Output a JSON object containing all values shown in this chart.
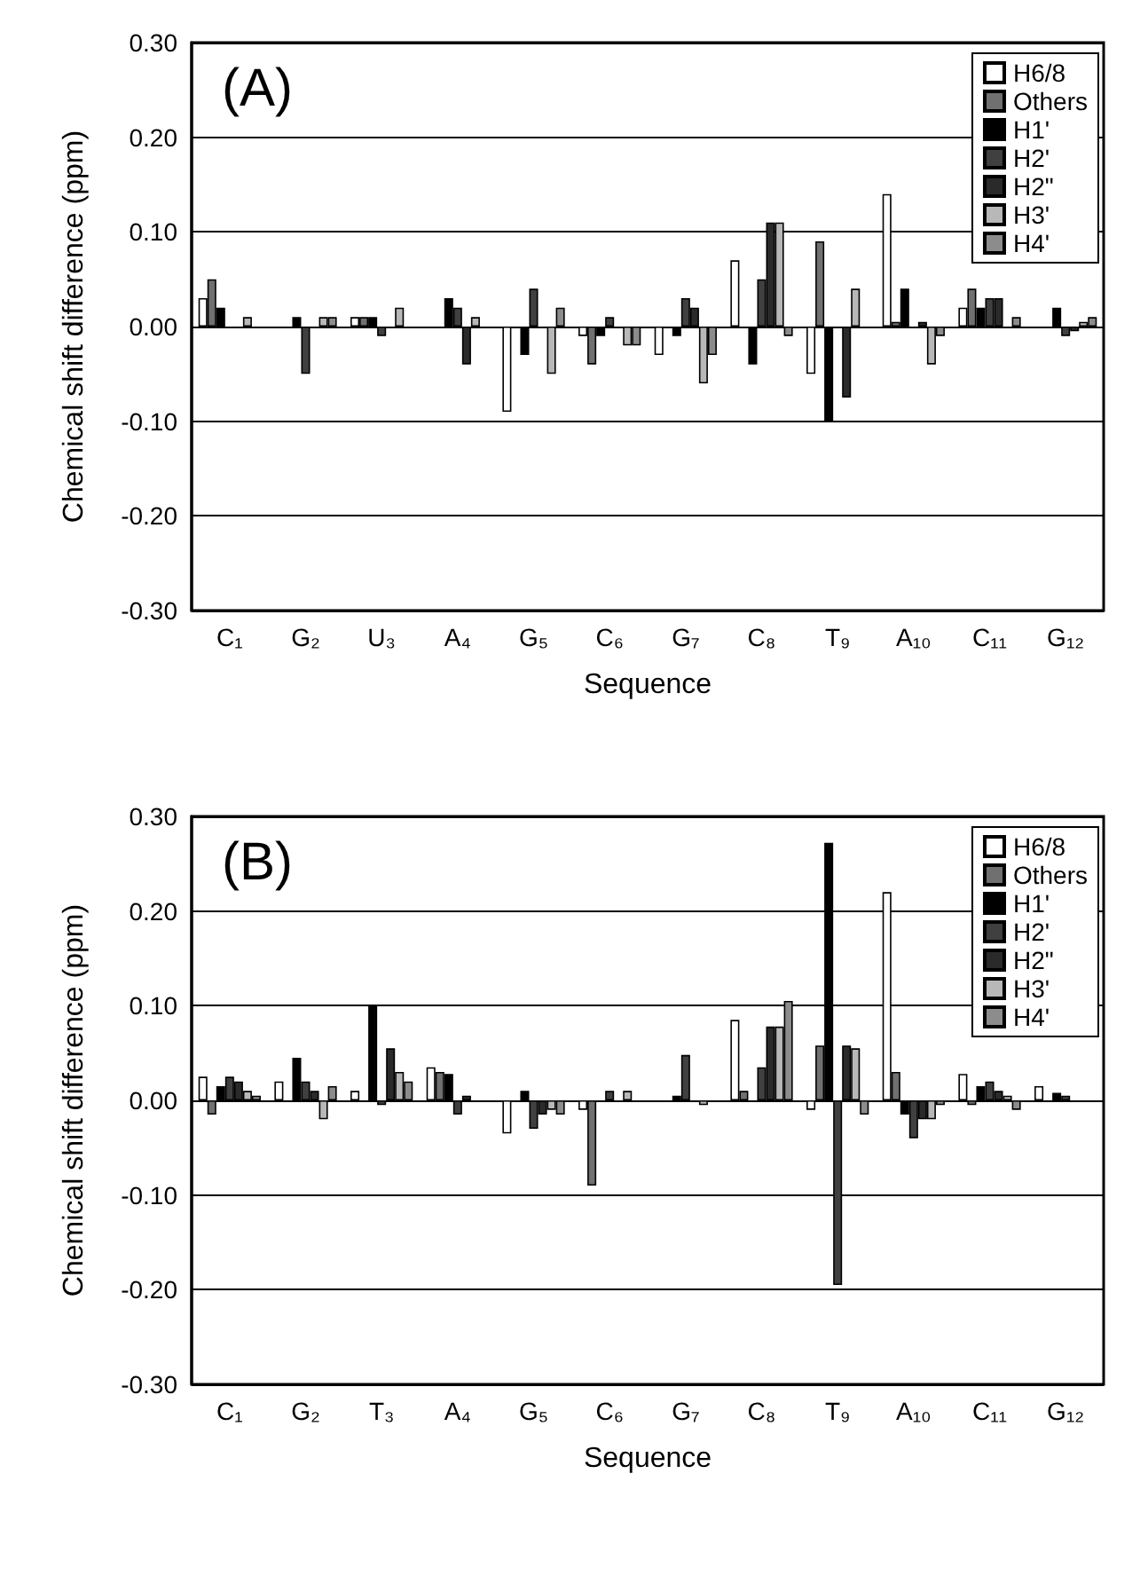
{
  "chart_data": [
    {
      "type": "bar",
      "title": "(A)",
      "xlabel": "Sequence",
      "ylabel": "Chemical shift difference (ppm)",
      "categories": [
        "C₁",
        "G₂",
        "U₃",
        "A₄",
        "G₅",
        "C₆",
        "G₇",
        "C₈",
        "T₉",
        "A₁₀",
        "C₁₁",
        "G₁₂"
      ],
      "series": [
        {
          "name": "H6/8",
          "color": "#ffffff",
          "values": [
            0.03,
            null,
            0.01,
            null,
            -0.09,
            -0.01,
            -0.03,
            0.07,
            -0.05,
            0.14,
            0.02,
            null
          ]
        },
        {
          "name": "Others",
          "color": "#707070",
          "values": [
            0.05,
            null,
            0.01,
            null,
            null,
            -0.04,
            null,
            null,
            0.09,
            0.005,
            0.04,
            null
          ]
        },
        {
          "name": "H1'",
          "color": "#000000",
          "values": [
            0.02,
            0.01,
            0.01,
            0.03,
            -0.03,
            -0.01,
            -0.01,
            -0.04,
            -0.1,
            0.04,
            0.02,
            0.02
          ]
        },
        {
          "name": "H2'",
          "color": "#404040",
          "values": [
            null,
            -0.05,
            -0.01,
            0.02,
            0.04,
            0.01,
            0.03,
            0.05,
            null,
            null,
            0.03,
            -0.01
          ]
        },
        {
          "name": "H2\"",
          "color": "#2a2a2a",
          "values": [
            null,
            null,
            null,
            -0.04,
            null,
            null,
            0.02,
            0.11,
            -0.075,
            0.005,
            0.03,
            -0.005
          ]
        },
        {
          "name": "H3'",
          "color": "#b8b8b8",
          "values": [
            0.01,
            0.01,
            0.02,
            0.01,
            -0.05,
            -0.02,
            -0.06,
            0.11,
            0.04,
            -0.04,
            null,
            0.005
          ]
        },
        {
          "name": "H4'",
          "color": "#8c8c8c",
          "values": [
            null,
            0.01,
            null,
            null,
            0.02,
            -0.02,
            -0.03,
            -0.01,
            null,
            -0.01,
            0.01,
            0.01
          ]
        }
      ],
      "ylim": [
        -0.3,
        0.3
      ],
      "yticks": [
        {
          "value": -0.3,
          "label": "-0.30"
        },
        {
          "value": -0.2,
          "label": "-0.20"
        },
        {
          "value": -0.1,
          "label": "-0.10"
        },
        {
          "value": 0,
          "label": "0.00"
        },
        {
          "value": 0.1,
          "label": "0.10"
        },
        {
          "value": 0.2,
          "label": "0.20"
        },
        {
          "value": 0.3,
          "label": "0.30"
        }
      ],
      "grid": "y",
      "legend": "top right"
    },
    {
      "type": "bar",
      "title": "(B)",
      "xlabel": "Sequence",
      "ylabel": "Chemical shift difference (ppm)",
      "categories": [
        "C₁",
        "G₂",
        "T₃",
        "A₄",
        "G₅",
        "C₆",
        "G₇",
        "C₈",
        "T₉",
        "A₁₀",
        "C₁₁",
        "G₁₂"
      ],
      "series": [
        {
          "name": "H6/8",
          "color": "#ffffff",
          "values": [
            0.025,
            0.02,
            0.01,
            0.035,
            -0.035,
            -0.01,
            null,
            0.085,
            -0.01,
            0.22,
            0.028,
            0.015
          ]
        },
        {
          "name": "Others",
          "color": "#707070",
          "values": [
            -0.015,
            null,
            null,
            0.03,
            null,
            -0.09,
            null,
            0.01,
            0.058,
            0.03,
            -0.005,
            null
          ]
        },
        {
          "name": "H1'",
          "color": "#000000",
          "values": [
            0.015,
            0.045,
            0.1,
            0.028,
            0.01,
            null,
            0.005,
            null,
            0.272,
            -0.015,
            0.015,
            0.008
          ]
        },
        {
          "name": "H2'",
          "color": "#404040",
          "values": [
            0.025,
            0.02,
            -0.005,
            -0.015,
            -0.03,
            0.01,
            0.048,
            0.035,
            -0.195,
            -0.04,
            0.02,
            0.005
          ]
        },
        {
          "name": "H2\"",
          "color": "#2a2a2a",
          "values": [
            0.02,
            0.01,
            0.055,
            0.005,
            -0.015,
            null,
            null,
            0.078,
            0.058,
            -0.02,
            0.01,
            null
          ]
        },
        {
          "name": "H3'",
          "color": "#b8b8b8",
          "values": [
            0.01,
            -0.02,
            0.03,
            null,
            -0.01,
            0.01,
            -0.005,
            0.078,
            0.055,
            -0.02,
            0.005,
            null
          ]
        },
        {
          "name": "H4'",
          "color": "#8c8c8c",
          "values": [
            0.005,
            0.015,
            0.02,
            null,
            -0.015,
            null,
            null,
            0.105,
            -0.015,
            -0.005,
            -0.01,
            null
          ]
        }
      ],
      "ylim": [
        -0.3,
        0.3
      ],
      "yticks": [
        {
          "value": -0.3,
          "label": "-0.30"
        },
        {
          "value": -0.2,
          "label": "-0.20"
        },
        {
          "value": -0.1,
          "label": "-0.10"
        },
        {
          "value": 0,
          "label": "0.00"
        },
        {
          "value": 0.1,
          "label": "0.10"
        },
        {
          "value": 0.2,
          "label": "0.20"
        },
        {
          "value": 0.3,
          "label": "0.30"
        }
      ],
      "grid": "y",
      "legend": "top right"
    }
  ]
}
